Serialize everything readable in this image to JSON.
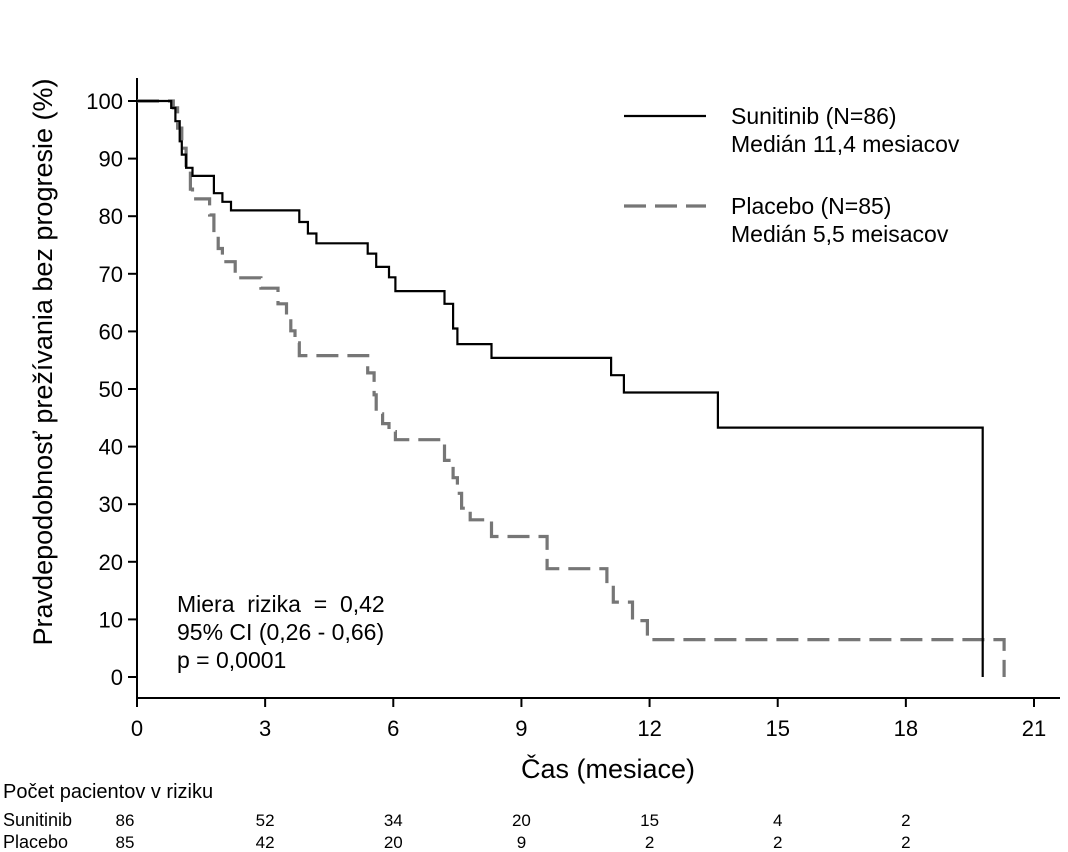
{
  "chart_data": {
    "type": "line",
    "subtype": "kaplan-meier-step",
    "xlabel": "Čas (mesiace)",
    "ylabel": "Pravdepodobnosť prežívania bez progresie (%)",
    "xlim": [
      0,
      21
    ],
    "ylim": [
      0,
      100
    ],
    "xticks": [
      0,
      3,
      6,
      9,
      12,
      15,
      18,
      21
    ],
    "yticks": [
      0,
      10,
      20,
      30,
      40,
      50,
      60,
      70,
      80,
      90,
      100
    ],
    "grid": false,
    "legend_position": "top-right",
    "series": [
      {
        "name": "Sunitinib (N=86)",
        "subtitle": "Medián 11,4 mesiacov",
        "color": "#000000",
        "style": "solid",
        "points": [
          [
            0,
            100
          ],
          [
            0.8,
            100
          ],
          [
            0.8,
            98.8
          ],
          [
            0.9,
            98.8
          ],
          [
            0.9,
            96.5
          ],
          [
            1.0,
            96.5
          ],
          [
            1.0,
            93
          ],
          [
            1.05,
            93
          ],
          [
            1.05,
            90.7
          ],
          [
            1.15,
            90.7
          ],
          [
            1.15,
            88.4
          ],
          [
            1.3,
            88.4
          ],
          [
            1.3,
            87
          ],
          [
            1.8,
            87
          ],
          [
            1.8,
            84
          ],
          [
            2.0,
            84
          ],
          [
            2.0,
            82.5
          ],
          [
            2.2,
            82.5
          ],
          [
            2.2,
            81
          ],
          [
            3.8,
            81
          ],
          [
            3.8,
            79
          ],
          [
            4.0,
            79
          ],
          [
            4.0,
            77
          ],
          [
            4.2,
            77
          ],
          [
            4.2,
            75.3
          ],
          [
            5.4,
            75.3
          ],
          [
            5.4,
            73.5
          ],
          [
            5.6,
            73.5
          ],
          [
            5.6,
            71.2
          ],
          [
            5.9,
            71.2
          ],
          [
            5.9,
            69.4
          ],
          [
            6.05,
            69.4
          ],
          [
            6.05,
            67
          ],
          [
            7.2,
            67
          ],
          [
            7.2,
            64.8
          ],
          [
            7.4,
            64.8
          ],
          [
            7.4,
            60.5
          ],
          [
            7.5,
            60.5
          ],
          [
            7.5,
            57.8
          ],
          [
            8.3,
            57.8
          ],
          [
            8.3,
            55.4
          ],
          [
            11.1,
            55.4
          ],
          [
            11.1,
            52.4
          ],
          [
            11.4,
            52.4
          ],
          [
            11.4,
            49.4
          ],
          [
            13.6,
            49.4
          ],
          [
            13.6,
            43.3
          ],
          [
            19.8,
            43.3
          ],
          [
            19.8,
            0
          ]
        ]
      },
      {
        "name": "Placebo (N=85)",
        "subtitle": "Medián 5,5 meisacov",
        "color": "#767676",
        "style": "dashed",
        "points": [
          [
            0,
            100
          ],
          [
            0.85,
            100
          ],
          [
            0.85,
            98.8
          ],
          [
            0.95,
            98.8
          ],
          [
            0.95,
            95.3
          ],
          [
            1.05,
            95.3
          ],
          [
            1.05,
            91.8
          ],
          [
            1.15,
            91.8
          ],
          [
            1.15,
            88.2
          ],
          [
            1.25,
            88.2
          ],
          [
            1.25,
            84.7
          ],
          [
            1.3,
            84.7
          ],
          [
            1.3,
            83
          ],
          [
            1.7,
            83
          ],
          [
            1.7,
            80.2
          ],
          [
            1.8,
            80.2
          ],
          [
            1.8,
            77.1
          ],
          [
            1.9,
            77.1
          ],
          [
            1.9,
            74.4
          ],
          [
            2.0,
            74.4
          ],
          [
            2.0,
            72.1
          ],
          [
            2.3,
            72.1
          ],
          [
            2.3,
            69.3
          ],
          [
            2.9,
            69.3
          ],
          [
            2.9,
            67.5
          ],
          [
            3.3,
            67.5
          ],
          [
            3.3,
            64.8
          ],
          [
            3.5,
            64.8
          ],
          [
            3.5,
            62.3
          ],
          [
            3.6,
            62.3
          ],
          [
            3.6,
            60.1
          ],
          [
            3.7,
            60.1
          ],
          [
            3.7,
            58
          ],
          [
            3.8,
            58
          ],
          [
            3.8,
            55.8
          ],
          [
            5.4,
            55.8
          ],
          [
            5.4,
            52.8
          ],
          [
            5.55,
            52.8
          ],
          [
            5.55,
            49
          ],
          [
            5.6,
            49
          ],
          [
            5.6,
            45.7
          ],
          [
            5.75,
            45.7
          ],
          [
            5.75,
            44
          ],
          [
            5.9,
            44
          ],
          [
            5.9,
            42.6
          ],
          [
            6.05,
            42.6
          ],
          [
            6.05,
            41.2
          ],
          [
            7.2,
            41.2
          ],
          [
            7.2,
            37.6
          ],
          [
            7.4,
            37.6
          ],
          [
            7.4,
            34.6
          ],
          [
            7.5,
            34.6
          ],
          [
            7.5,
            31.9
          ],
          [
            7.6,
            31.9
          ],
          [
            7.6,
            29.3
          ],
          [
            7.8,
            29.3
          ],
          [
            7.8,
            27.3
          ],
          [
            8.3,
            27.3
          ],
          [
            8.3,
            24.4
          ],
          [
            9.6,
            24.4
          ],
          [
            9.6,
            18.8
          ],
          [
            11.0,
            18.8
          ],
          [
            11.0,
            16
          ],
          [
            11.15,
            16
          ],
          [
            11.15,
            13
          ],
          [
            11.6,
            13
          ],
          [
            11.6,
            9.8
          ],
          [
            11.95,
            9.8
          ],
          [
            11.95,
            6.5
          ],
          [
            20.3,
            6.5
          ],
          [
            20.3,
            0
          ]
        ]
      }
    ],
    "annotations": {
      "line1": "Miera  rizika  =  0,42",
      "line2": "95% CI (0,26 - 0,66)",
      "line3": "p = 0,0001"
    },
    "risk_table": {
      "title": "Počet pacientov v riziku",
      "times": [
        0,
        3,
        6,
        9,
        12,
        15,
        18
      ],
      "rows": [
        {
          "label": "Sunitinib",
          "values": [
            "86",
            "52",
            "34",
            "20",
            "15",
            "4",
            "2"
          ]
        },
        {
          "label": "Placebo",
          "values": [
            "85",
            "42",
            "20",
            "9",
            "2",
            "2",
            "2"
          ]
        }
      ]
    }
  }
}
